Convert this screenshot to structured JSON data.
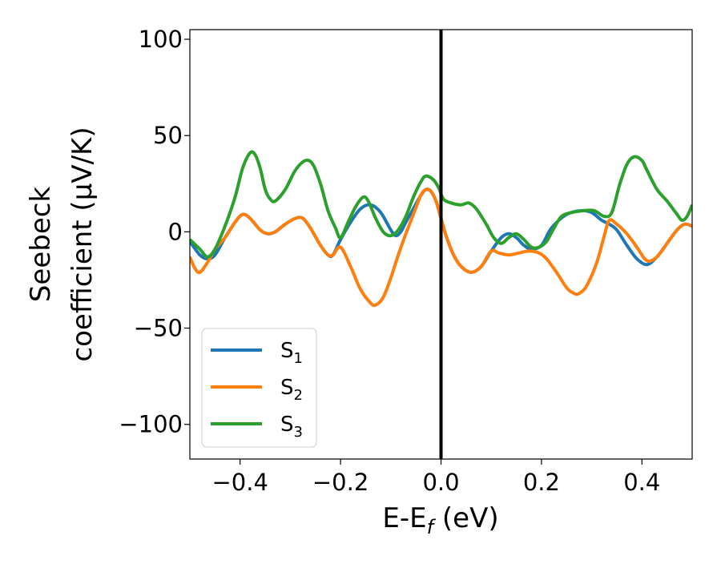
{
  "chart_data": {
    "type": "line",
    "title": "",
    "xlabel": "E-E",
    "xlabel_sub": "f",
    "xlabel_units": " (eV)",
    "ylabel_line1": "Seebeck",
    "ylabel_line2": "coefficient  (μV/K)",
    "xlim": [
      -0.5,
      0.5
    ],
    "ylim": [
      -118,
      105
    ],
    "xticks": [
      -0.4,
      -0.2,
      0.0,
      0.2,
      0.4
    ],
    "xtick_labels": [
      "−0.4",
      "−0.2",
      "0.0",
      "0.2",
      "0.4"
    ],
    "yticks": [
      -100,
      -50,
      0,
      50,
      100
    ],
    "ytick_labels": [
      "−100",
      "−50",
      "0",
      "50",
      "100"
    ],
    "vline": {
      "x": 0.0,
      "color": "#000000"
    },
    "legend_position": "lower-left",
    "series": [
      {
        "name": "S",
        "sub": "1",
        "color": "#1f77b4",
        "points": [
          [
            -0.5,
            -5
          ],
          [
            -0.48,
            -12
          ],
          [
            -0.465,
            -14
          ],
          [
            -0.45,
            -12
          ],
          [
            -0.43,
            -3
          ],
          [
            -0.41,
            5
          ],
          [
            -0.395,
            9
          ],
          [
            -0.38,
            7
          ],
          [
            -0.36,
            1
          ],
          [
            -0.345,
            -1
          ],
          [
            -0.33,
            0
          ],
          [
            -0.31,
            4
          ],
          [
            -0.29,
            7
          ],
          [
            -0.275,
            7
          ],
          [
            -0.26,
            2
          ],
          [
            -0.24,
            -7
          ],
          [
            -0.225,
            -12
          ],
          [
            -0.215,
            -12
          ],
          [
            -0.2,
            -4
          ],
          [
            -0.18,
            5
          ],
          [
            -0.16,
            12
          ],
          [
            -0.14,
            14
          ],
          [
            -0.12,
            10
          ],
          [
            -0.1,
            1
          ],
          [
            -0.09,
            -2
          ],
          [
            -0.08,
            0
          ],
          [
            -0.07,
            5
          ],
          [
            -0.055,
            12
          ],
          [
            -0.04,
            19
          ],
          [
            -0.03,
            22
          ],
          [
            -0.02,
            21
          ],
          [
            -0.01,
            16
          ],
          [
            0.0,
            7
          ],
          [
            0.01,
            -2
          ],
          [
            0.025,
            -12
          ],
          [
            0.04,
            -18
          ],
          [
            0.06,
            -21
          ],
          [
            0.08,
            -18
          ],
          [
            0.1,
            -10
          ],
          [
            0.12,
            -3
          ],
          [
            0.135,
            -1
          ],
          [
            0.15,
            -3
          ],
          [
            0.165,
            -7
          ],
          [
            0.18,
            -9
          ],
          [
            0.2,
            -7
          ],
          [
            0.22,
            2
          ],
          [
            0.25,
            9
          ],
          [
            0.28,
            11
          ],
          [
            0.3,
            10
          ],
          [
            0.32,
            6
          ],
          [
            0.335,
            4
          ],
          [
            0.35,
            1
          ],
          [
            0.37,
            -7
          ],
          [
            0.39,
            -14
          ],
          [
            0.41,
            -17
          ],
          [
            0.43,
            -13
          ],
          [
            0.45,
            -6
          ],
          [
            0.47,
            1
          ],
          [
            0.485,
            4
          ],
          [
            0.5,
            3
          ]
        ]
      },
      {
        "name": "S",
        "sub": "2",
        "color": "#ff7f0e",
        "points": [
          [
            -0.5,
            -13
          ],
          [
            -0.49,
            -19
          ],
          [
            -0.48,
            -21
          ],
          [
            -0.465,
            -16
          ],
          [
            -0.45,
            -9
          ],
          [
            -0.43,
            -3
          ],
          [
            -0.41,
            5
          ],
          [
            -0.395,
            9
          ],
          [
            -0.38,
            7
          ],
          [
            -0.36,
            1
          ],
          [
            -0.345,
            -1
          ],
          [
            -0.33,
            0
          ],
          [
            -0.31,
            4
          ],
          [
            -0.29,
            7
          ],
          [
            -0.275,
            7
          ],
          [
            -0.26,
            2
          ],
          [
            -0.24,
            -7
          ],
          [
            -0.225,
            -12
          ],
          [
            -0.215,
            -12
          ],
          [
            -0.2,
            -8
          ],
          [
            -0.18,
            -18
          ],
          [
            -0.16,
            -30
          ],
          [
            -0.14,
            -37
          ],
          [
            -0.13,
            -38
          ],
          [
            -0.115,
            -34
          ],
          [
            -0.1,
            -24
          ],
          [
            -0.085,
            -12
          ],
          [
            -0.07,
            -1
          ],
          [
            -0.055,
            9
          ],
          [
            -0.04,
            19
          ],
          [
            -0.03,
            22
          ],
          [
            -0.02,
            21
          ],
          [
            -0.01,
            16
          ],
          [
            0.0,
            7
          ],
          [
            0.01,
            -2
          ],
          [
            0.025,
            -12
          ],
          [
            0.04,
            -18
          ],
          [
            0.06,
            -21
          ],
          [
            0.08,
            -18
          ],
          [
            0.1,
            -10
          ],
          [
            0.115,
            -11
          ],
          [
            0.135,
            -12
          ],
          [
            0.155,
            -11
          ],
          [
            0.175,
            -10
          ],
          [
            0.195,
            -11
          ],
          [
            0.21,
            -14
          ],
          [
            0.23,
            -21
          ],
          [
            0.25,
            -29
          ],
          [
            0.265,
            -32
          ],
          [
            0.275,
            -32
          ],
          [
            0.29,
            -28
          ],
          [
            0.31,
            -16
          ],
          [
            0.325,
            -2
          ],
          [
            0.335,
            6
          ],
          [
            0.35,
            4
          ],
          [
            0.37,
            -1
          ],
          [
            0.39,
            -8
          ],
          [
            0.41,
            -15
          ],
          [
            0.43,
            -13
          ],
          [
            0.45,
            -6
          ],
          [
            0.47,
            1
          ],
          [
            0.485,
            4
          ],
          [
            0.5,
            3
          ]
        ]
      },
      {
        "name": "S",
        "sub": "3",
        "color": "#2ca02c",
        "points": [
          [
            -0.5,
            -4
          ],
          [
            -0.48,
            -9
          ],
          [
            -0.465,
            -13
          ],
          [
            -0.45,
            -9
          ],
          [
            -0.43,
            3
          ],
          [
            -0.41,
            18
          ],
          [
            -0.395,
            33
          ],
          [
            -0.38,
            41
          ],
          [
            -0.37,
            40
          ],
          [
            -0.36,
            33
          ],
          [
            -0.35,
            22
          ],
          [
            -0.34,
            17
          ],
          [
            -0.33,
            16
          ],
          [
            -0.31,
            22
          ],
          [
            -0.29,
            32
          ],
          [
            -0.27,
            37
          ],
          [
            -0.255,
            35
          ],
          [
            -0.24,
            25
          ],
          [
            -0.225,
            11
          ],
          [
            -0.21,
            2
          ],
          [
            -0.2,
            -3
          ],
          [
            -0.185,
            5
          ],
          [
            -0.17,
            13
          ],
          [
            -0.155,
            18
          ],
          [
            -0.145,
            16
          ],
          [
            -0.13,
            7
          ],
          [
            -0.115,
            0
          ],
          [
            -0.1,
            -2
          ],
          [
            -0.085,
            1
          ],
          [
            -0.07,
            8
          ],
          [
            -0.055,
            18
          ],
          [
            -0.04,
            26
          ],
          [
            -0.03,
            29
          ],
          [
            -0.015,
            27
          ],
          [
            -0.005,
            23
          ],
          [
            0.005,
            17
          ],
          [
            0.02,
            15
          ],
          [
            0.04,
            14
          ],
          [
            0.055,
            15
          ],
          [
            0.07,
            12
          ],
          [
            0.09,
            4
          ],
          [
            0.105,
            -3
          ],
          [
            0.12,
            -6
          ],
          [
            0.135,
            -3
          ],
          [
            0.15,
            -1
          ],
          [
            0.165,
            -4
          ],
          [
            0.18,
            -8
          ],
          [
            0.195,
            -8
          ],
          [
            0.21,
            -5
          ],
          [
            0.225,
            2
          ],
          [
            0.24,
            8
          ],
          [
            0.26,
            10
          ],
          [
            0.285,
            11
          ],
          [
            0.305,
            11
          ],
          [
            0.325,
            8
          ],
          [
            0.34,
            10
          ],
          [
            0.355,
            24
          ],
          [
            0.37,
            35
          ],
          [
            0.385,
            39
          ],
          [
            0.4,
            37
          ],
          [
            0.41,
            32
          ],
          [
            0.43,
            22
          ],
          [
            0.45,
            16
          ],
          [
            0.47,
            9
          ],
          [
            0.48,
            6
          ],
          [
            0.49,
            8
          ],
          [
            0.5,
            14
          ]
        ]
      }
    ]
  }
}
